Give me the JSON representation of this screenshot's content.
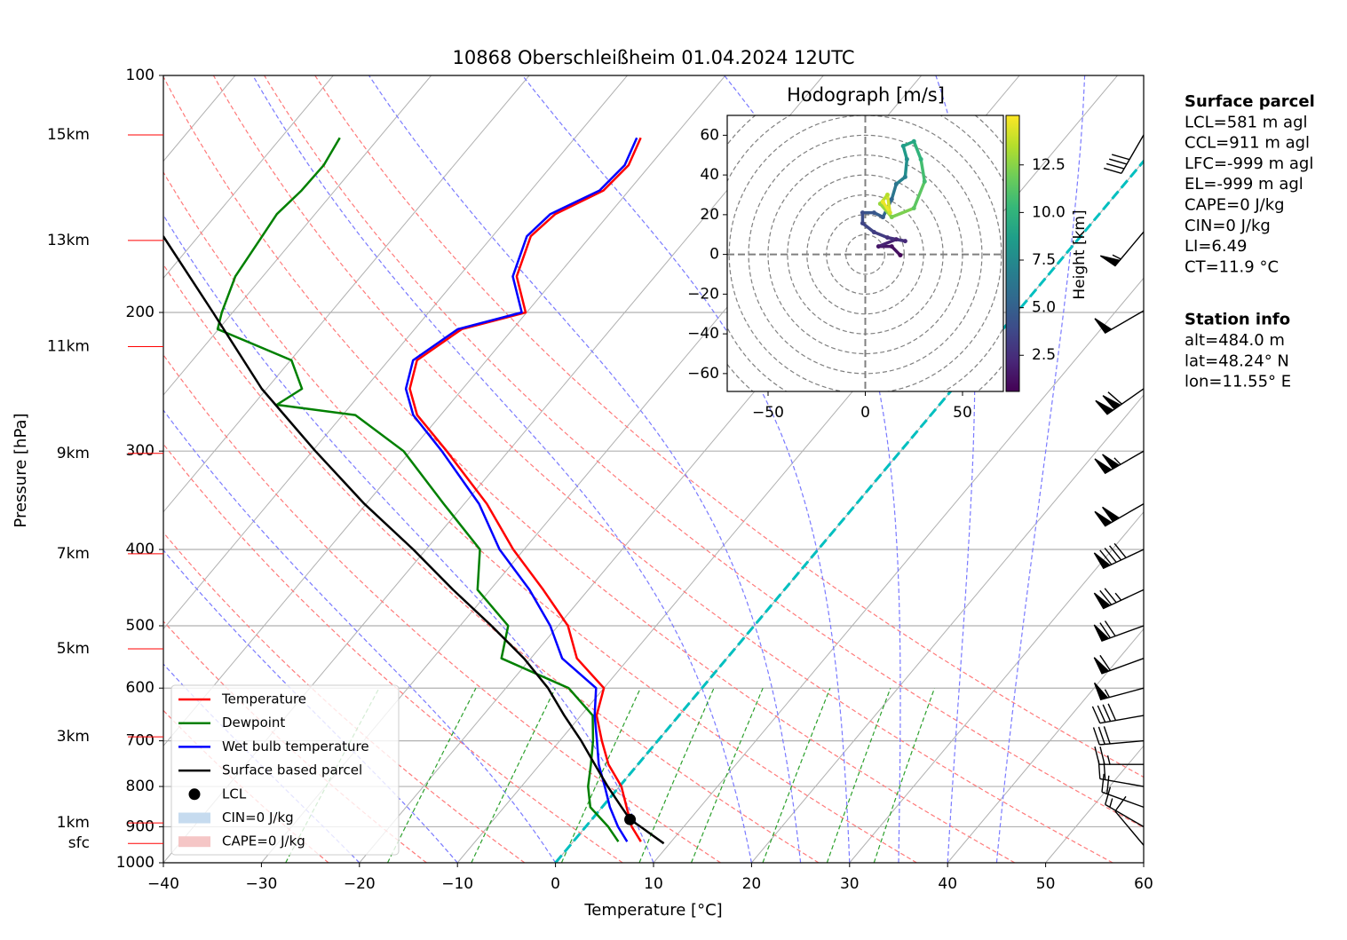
{
  "chart_data": {
    "type": "skewt",
    "title": "10868 Oberschleißheim 01.04.2024 12UTC",
    "x_label": "Temperature [°C]",
    "y_label": "Pressure [hPa]",
    "xlim": [
      -40,
      60
    ],
    "xticks": [
      {
        "value": -40,
        "label": "−40"
      },
      {
        "value": -30,
        "label": "−30"
      },
      {
        "value": -20,
        "label": "−20"
      },
      {
        "value": -10,
        "label": "−10"
      },
      0,
      10,
      20,
      30,
      40,
      50,
      60
    ],
    "ylim": [
      1000,
      100
    ],
    "log_y": true,
    "yticks": [
      100,
      200,
      300,
      400,
      500,
      600,
      700,
      800,
      900,
      1000
    ],
    "grid": true,
    "isotherms": [
      -100,
      -90,
      -80,
      -70,
      -60,
      -50,
      -40,
      -30,
      -20,
      -10,
      0,
      10,
      20,
      30,
      40,
      50,
      60
    ],
    "isotherm_color": "#b0b0b0",
    "freezing_isotherm": 0,
    "freezing_color": "#00bfbf",
    "dry_adiabats": [
      250,
      260,
      270,
      280,
      290,
      300,
      310,
      320,
      330,
      340,
      350
    ],
    "dry_adiabat_color": "#ff7a7a",
    "moist_adiabats": [
      -20,
      -10,
      0,
      10,
      20,
      25,
      30,
      35,
      40,
      45
    ],
    "moist_adiabat_color": "#7a7aff",
    "mixing_ratios": [
      0.4,
      1,
      2,
      4,
      7,
      10,
      16,
      24,
      32
    ],
    "mixing_ratio_top": 600,
    "mixing_ratio_color": "#2ca02c",
    "altitude_ticks": [
      {
        "value": 119,
        "label": "15km"
      },
      {
        "value": 162,
        "label": "13km"
      },
      {
        "value": 221,
        "label": "11km"
      },
      {
        "value": 302,
        "label": "9km"
      },
      {
        "value": 405,
        "label": "7km"
      },
      {
        "value": 535,
        "label": "5km"
      },
      {
        "value": 692,
        "label": "3km"
      },
      {
        "value": 890,
        "label": "1km"
      },
      {
        "value": 945,
        "label": "sfc"
      }
    ],
    "altitude_color": "#ff0000",
    "series": [
      {
        "name": "Temperature",
        "color": "#ff0000",
        "pressure": [
          940,
          900,
          850,
          800,
          750,
          700,
          650,
          600,
          550,
          500,
          450,
          400,
          350,
          300,
          270,
          250,
          230,
          210,
          200,
          180,
          160,
          150,
          140,
          130,
          120
        ],
        "values": [
          6.9,
          4.7,
          2.5,
          0.2,
          -3.0,
          -5.7,
          -8.4,
          -10.0,
          -15.3,
          -19.0,
          -24.6,
          -31.1,
          -37.7,
          -46.3,
          -52.4,
          -55.4,
          -57.1,
          -55.2,
          -50.1,
          -54.1,
          -56.1,
          -55.5,
          -52.6,
          -52.2,
          -53.3
        ]
      },
      {
        "name": "Dewpoint",
        "color": "#008000",
        "pressure": [
          940,
          900,
          850,
          800,
          750,
          700,
          650,
          600,
          550,
          500,
          450,
          400,
          350,
          300,
          270,
          262,
          250,
          230,
          210,
          200,
          180,
          160,
          150,
          140,
          130,
          120
        ],
        "values": [
          4.6,
          2.3,
          -1.2,
          -3.2,
          -4.8,
          -6.6,
          -8.8,
          -13.6,
          -23.0,
          -25.1,
          -31.3,
          -34.5,
          -42.1,
          -50.7,
          -58.7,
          -67.6,
          -66.4,
          -69.9,
          -80.1,
          -81.1,
          -82.8,
          -83.5,
          -83.9,
          -83.4,
          -83.3,
          -84.0
        ]
      },
      {
        "name": "Wet bulb temperature",
        "color": "#0000ff",
        "pressure": [
          940,
          900,
          850,
          800,
          750,
          700,
          650,
          600,
          550,
          500,
          450,
          400,
          350,
          300,
          270,
          250,
          230,
          210,
          200,
          180,
          160,
          150,
          140,
          130,
          120
        ],
        "values": [
          5.5,
          3.3,
          0.8,
          -1.5,
          -4.0,
          -6.2,
          -8.6,
          -10.8,
          -16.8,
          -20.8,
          -26.0,
          -32.5,
          -38.5,
          -46.8,
          -52.8,
          -55.8,
          -57.5,
          -55.6,
          -50.5,
          -54.5,
          -56.5,
          -56.0,
          -53.0,
          -52.6,
          -53.7
        ]
      },
      {
        "name": "Surface based parcel",
        "color": "#000000",
        "pressure": [
          945,
          900,
          881,
          850,
          800,
          750,
          700,
          650,
          600,
          550,
          500,
          450,
          400,
          350,
          300,
          250,
          200,
          160
        ],
        "values": [
          9.4,
          5.6,
          3.9,
          2.0,
          -1.2,
          -4.4,
          -7.8,
          -11.7,
          -15.7,
          -20.7,
          -26.8,
          -33.8,
          -41.3,
          -50.2,
          -59.7,
          -70.5,
          -82.0,
          -93.6
        ]
      }
    ],
    "lcl": {
      "name": "LCL",
      "pressure": 881,
      "value": 3.9,
      "color": "#000000"
    },
    "shading": [
      {
        "name": "CIN=0 J/kg",
        "color": "#c6dbef"
      },
      {
        "name": "CAPE=0 J/kg",
        "color": "#f5c6c6"
      }
    ],
    "legend": "lower left",
    "wind_barbs": {
      "pressure": [
        119,
        158,
        199,
        250,
        300,
        350,
        400,
        450,
        500,
        550,
        600,
        650,
        700,
        750,
        800,
        850,
        900,
        950
      ],
      "speed": [
        40,
        55,
        50,
        110,
        105,
        100,
        90,
        75,
        70,
        60,
        55,
        40,
        30,
        25,
        20,
        20,
        15,
        10
      ],
      "direction": [
        210,
        220,
        240,
        235,
        240,
        240,
        245,
        245,
        250,
        250,
        255,
        260,
        265,
        270,
        280,
        290,
        300,
        320
      ]
    },
    "hodograph": {
      "title": "Hodograph [m/s]",
      "xlim": [
        -71,
        71
      ],
      "ylim": [
        -69,
        70
      ],
      "xticks": [
        {
          "value": -50,
          "label": "−50"
        },
        0,
        50
      ],
      "yticks": [
        {
          "value": -60,
          "label": "−60"
        },
        {
          "value": -40,
          "label": "−40"
        },
        {
          "value": -20,
          "label": "−20"
        },
        0,
        20,
        40,
        60
      ],
      "rings": [
        10,
        20,
        30,
        40,
        50,
        60,
        70,
        80,
        90,
        100
      ],
      "u": [
        18,
        13.6,
        6.8,
        15.9,
        20.5,
        11.4,
        4.5,
        -1.4,
        -1.4,
        4.5,
        9.1,
        13.6,
        15.9,
        20.5,
        21.4,
        19.5,
        25,
        28.6,
        30.5,
        25,
        13.6,
        7.7,
        11.4,
        12.7,
        9.1
      ],
      "v": [
        -0.4,
        4.0,
        4.0,
        7.6,
        6.7,
        8.5,
        11.2,
        15.7,
        21,
        21,
        18.8,
        27.8,
        35.4,
        39,
        47.9,
        54.6,
        56.9,
        47.9,
        36.7,
        23.3,
        18.8,
        25.5,
        30,
        21,
        26.4
      ],
      "height": [
        0.8,
        1.2,
        1.5,
        2.0,
        2.3,
        2.7,
        3.2,
        3.6,
        4.0,
        4.4,
        4.8,
        5.5,
        6.3,
        7.0,
        7.8,
        8.5,
        9.2,
        10.0,
        10.7,
        11.4,
        12.2,
        12.8,
        13.5,
        14.2,
        14.7
      ],
      "colorbar": {
        "label": "Height [km]",
        "lim": [
          0.6,
          15.1
        ],
        "ticks": [
          2.5,
          {
            "value": 5,
            "label": "5.0"
          },
          7.5,
          {
            "value": 10,
            "label": "10.0"
          },
          12.5
        ]
      }
    },
    "panels": [
      {
        "title": "Surface parcel",
        "lines": [
          "LCL=581 m agl",
          "CCL=911 m agl",
          "LFC=-999 m agl",
          "EL=-999 m agl",
          "CAPE=0 J/kg",
          "CIN=0 J/kg",
          "LI=6.49",
          "CT=11.9 °C"
        ]
      },
      {
        "title": "Station info",
        "lines": [
          "alt=484.0 m",
          "lat=48.24° N",
          "lon=11.55° E"
        ]
      }
    ]
  }
}
